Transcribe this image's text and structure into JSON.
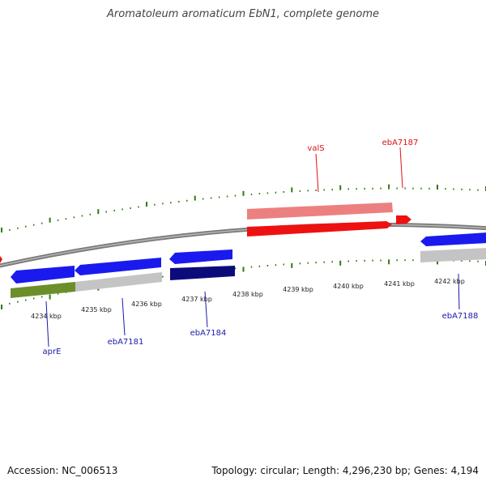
{
  "title": "Aromatoleum aromaticum EbN1, complete genome",
  "footer": {
    "accession": "Accession: NC_006513",
    "topology": "Topology: circular; Length: 4,296,230 bp; Genes: 4,194"
  },
  "colors": {
    "backbone": "#888888",
    "tick": "#2d7a0f",
    "gene_blue": "#1a1aee",
    "gene_navy": "#0b0b7a",
    "gene_red": "#ee1111",
    "gene_pink": "#ec8080",
    "gene_olive": "#6b8f2a",
    "gene_grey": "#c4c4c4",
    "label_blue": "#1a1aaa",
    "label_red": "#dd1111"
  },
  "scale_labels": [
    "4234 kbp",
    "4235 kbp",
    "4236 kbp",
    "4237 kbp",
    "4238 kbp",
    "4239 kbp",
    "4240 kbp",
    "4241 kbp",
    "4242 kbp"
  ],
  "gene_labels": [
    {
      "text": "aprE",
      "strand": "minus"
    },
    {
      "text": "ebA7181",
      "strand": "minus"
    },
    {
      "text": "ebA7184",
      "strand": "minus"
    },
    {
      "text": "ebA7188",
      "strand": "minus"
    },
    {
      "text": "valS",
      "strand": "plus"
    },
    {
      "text": "ebA7187",
      "strand": "plus"
    }
  ]
}
